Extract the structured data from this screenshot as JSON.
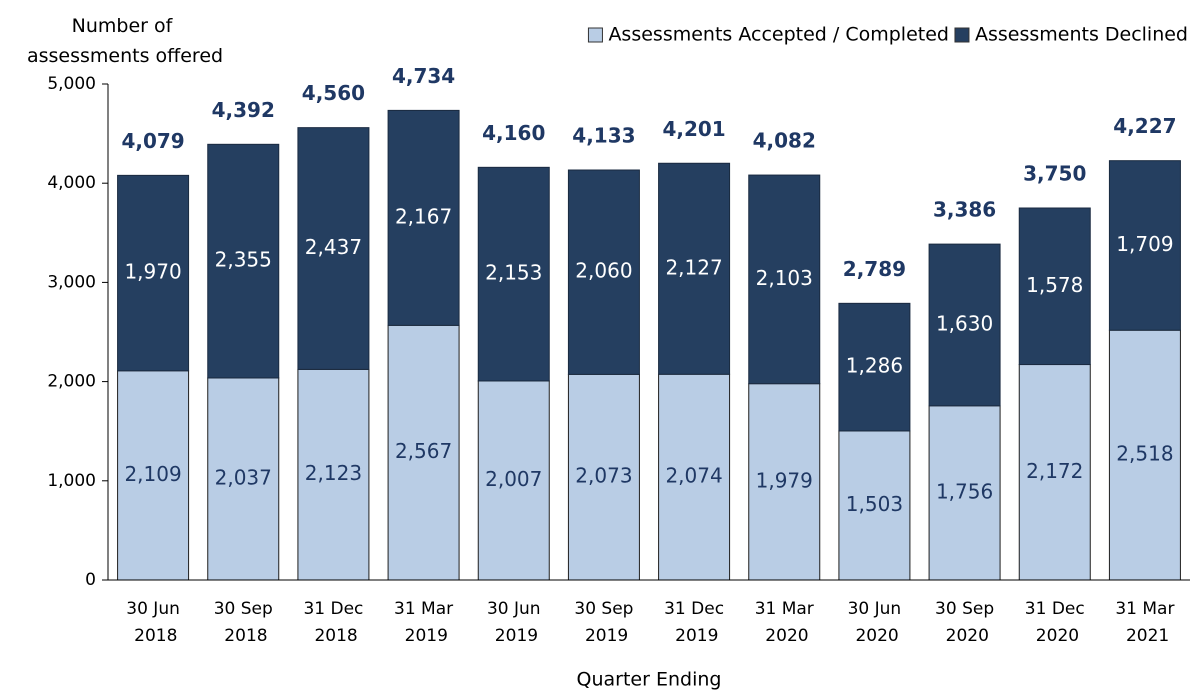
{
  "chart_data": {
    "type": "stacked_bar",
    "y_label": "Number of assessments offered",
    "x_label": "Quarter Ending",
    "categories": [
      "30 Jun 2018",
      "30 Sep 2018",
      "31 Dec 2018",
      "31 Mar 2019",
      "30 Jun 2019",
      "30 Sep 2019",
      "31 Dec 2019",
      "31 Mar 2020",
      "30 Jun 2020",
      "30 Sep 2020",
      "31 Dec 2020",
      "31 Mar 2021"
    ],
    "series": [
      {
        "name": "Assessments Accepted / Completed",
        "color": "#b9cde5",
        "values": [
          2109,
          2037,
          2123,
          2567,
          2007,
          2073,
          2074,
          1979,
          1503,
          1756,
          2172,
          2518
        ],
        "value_labels": [
          "2,109",
          "2,037",
          "2,123",
          "2,567",
          "2,007",
          "2,073",
          "2,074",
          "1,979",
          "1,503",
          "1,756",
          "2,172",
          "2,518"
        ]
      },
      {
        "name": "Assessments Declined",
        "color": "#253f60",
        "values": [
          1970,
          2355,
          2437,
          2167,
          2153,
          2060,
          2127,
          2103,
          1286,
          1630,
          1578,
          1709
        ],
        "value_labels": [
          "1,970",
          "2,355",
          "2,437",
          "2,167",
          "2,153",
          "2,060",
          "2,127",
          "2,103",
          "1,286",
          "1,630",
          "1,578",
          "1,709"
        ]
      }
    ],
    "totals": [
      4079,
      4392,
      4560,
      4734,
      4160,
      4133,
      4201,
      4082,
      2789,
      3386,
      3750,
      4227
    ],
    "total_labels": [
      "4,079",
      "4,392",
      "4,560",
      "4,734",
      "4,160",
      "4,133",
      "4,201",
      "4,082",
      "2,789",
      "3,386",
      "3,750",
      "4,227"
    ],
    "ylim": [
      0,
      5000
    ],
    "yticks": [
      0,
      {
        "value": 1000,
        "label": "1,000"
      },
      {
        "value": 2000,
        "label": "2,000"
      },
      {
        "value": 3000,
        "label": "3,000"
      },
      {
        "value": 4000,
        "label": "4,000"
      },
      {
        "value": 5000,
        "label": "5,000"
      }
    ],
    "legend": "top-right"
  }
}
